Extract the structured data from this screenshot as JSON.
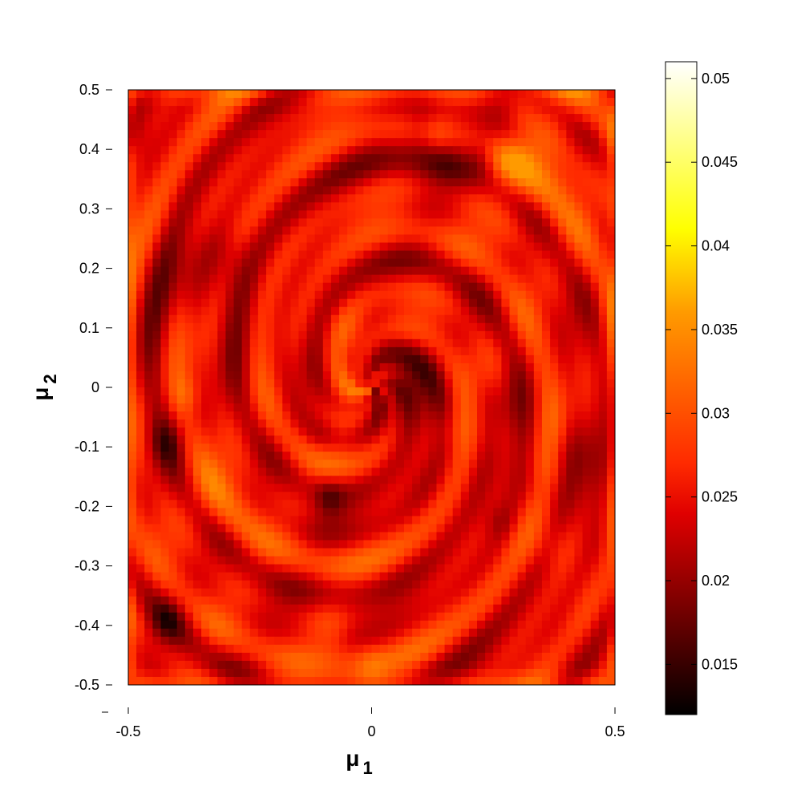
{
  "chart_data": {
    "type": "heatmap",
    "title": "",
    "xlabel": {
      "symbol": "μ",
      "subscript": "1"
    },
    "ylabel": {
      "symbol": "μ",
      "subscript": "2"
    },
    "xlim": [
      -0.5,
      0.5
    ],
    "ylim": [
      -0.5,
      0.5
    ],
    "x_ticks": [
      {
        "value": -0.5,
        "label": "-0.5"
      },
      {
        "value": 0,
        "label": "0"
      },
      {
        "value": 0.5,
        "label": "0.5"
      }
    ],
    "y_ticks": [
      {
        "value": 0.5,
        "label": "0.5"
      },
      {
        "value": 0.4,
        "label": "0.4"
      },
      {
        "value": 0.3,
        "label": "0.3"
      },
      {
        "value": 0.2,
        "label": "0.2"
      },
      {
        "value": 0.1,
        "label": "0.1"
      },
      {
        "value": 0,
        "label": "0"
      },
      {
        "value": -0.1,
        "label": "-0.1"
      },
      {
        "value": -0.2,
        "label": "-0.2"
      },
      {
        "value": -0.3,
        "label": "-0.3"
      },
      {
        "value": -0.4,
        "label": "-0.4"
      },
      {
        "value": -0.5,
        "label": "-0.5"
      }
    ],
    "colorbar": {
      "colormap": "hot",
      "range": [
        0.012,
        0.051
      ],
      "ticks": [
        {
          "value": 0.05,
          "label": "0.05"
        },
        {
          "value": 0.045,
          "label": "0.045"
        },
        {
          "value": 0.04,
          "label": "0.04"
        },
        {
          "value": 0.035,
          "label": "0.035"
        },
        {
          "value": 0.03,
          "label": "0.03"
        },
        {
          "value": 0.025,
          "label": "0.025"
        },
        {
          "value": 0.02,
          "label": "0.02"
        },
        {
          "value": 0.015,
          "label": "0.015"
        }
      ],
      "stops": [
        {
          "value": 0.012,
          "color": "#000000"
        },
        {
          "value": 0.024,
          "color": "#e00000"
        },
        {
          "value": 0.027,
          "color": "#ff2a00"
        },
        {
          "value": 0.036,
          "color": "#ff9a00"
        },
        {
          "value": 0.041,
          "color": "#ffff00"
        },
        {
          "value": 0.051,
          "color": "#ffffff"
        }
      ]
    },
    "grid": false,
    "field_description_values": {
      "min_visible": 0.013,
      "max_visible": 0.036,
      "typical": 0.025
    }
  }
}
